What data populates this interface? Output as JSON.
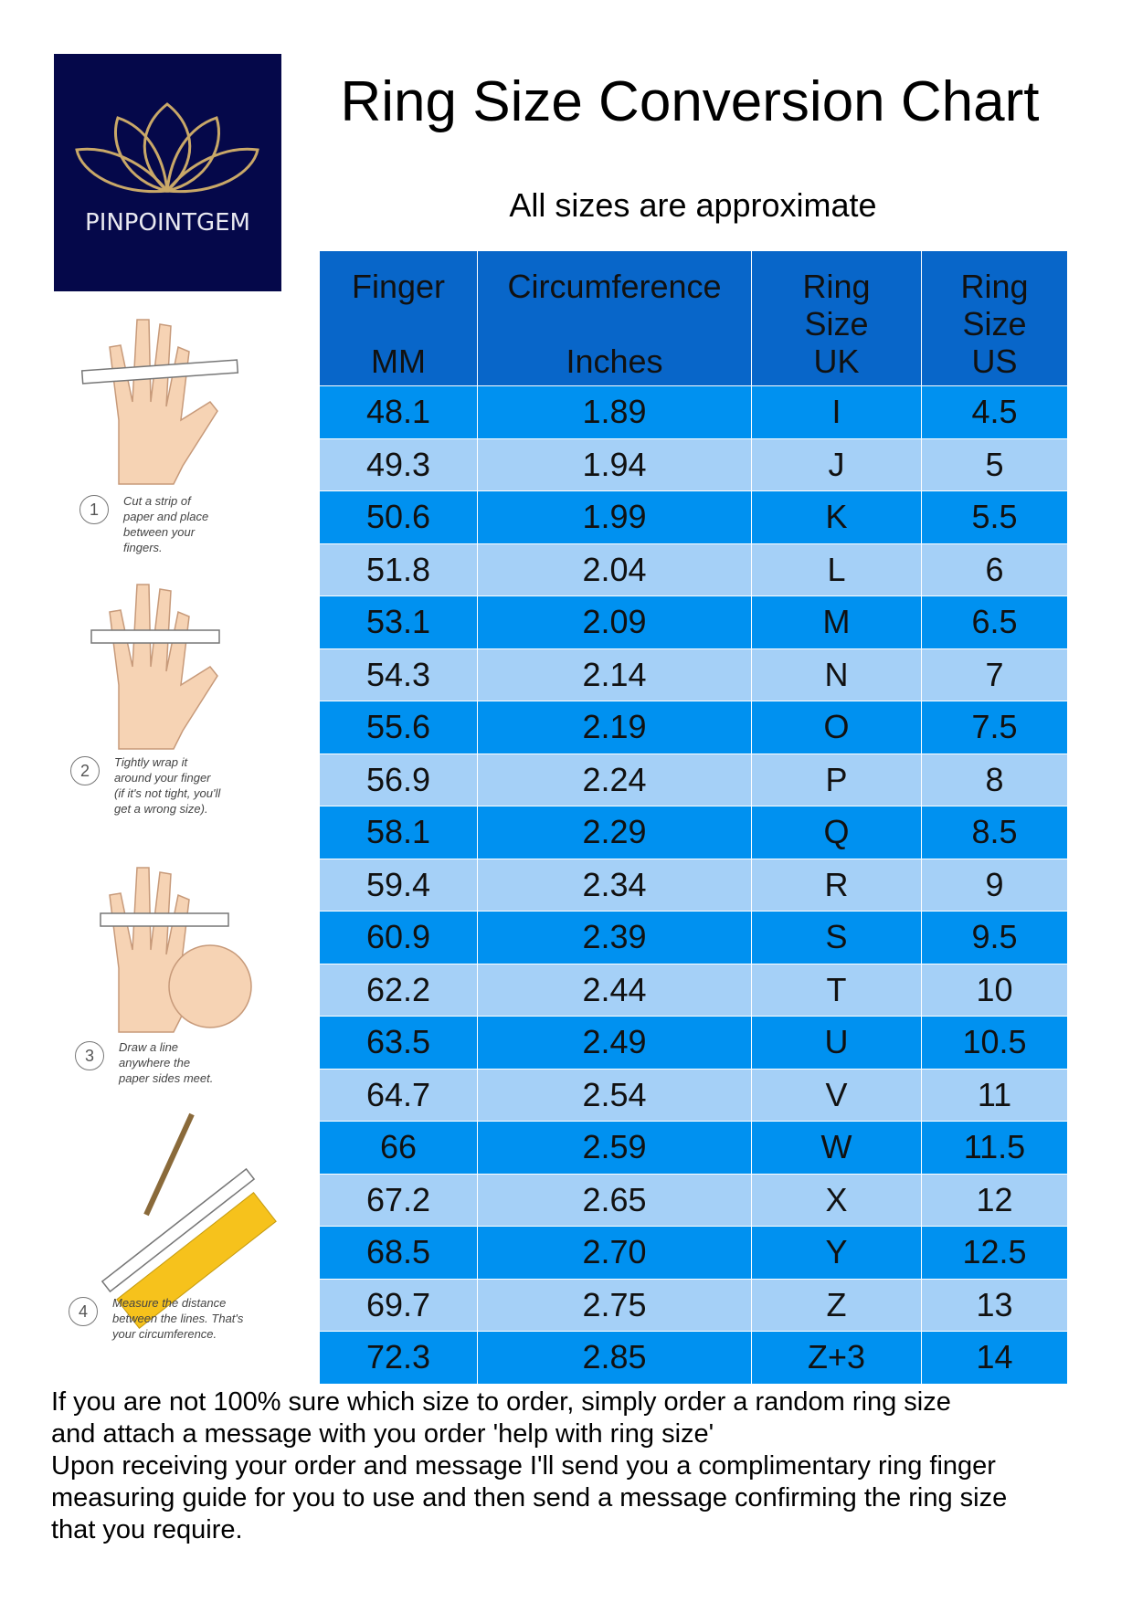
{
  "logo": {
    "text": "PINPOINTGEM"
  },
  "header": {
    "title": "Ring Size Conversion Chart",
    "subtitle": "All sizes are approximate"
  },
  "table": {
    "columns": [
      [
        "Finger",
        "",
        "MM"
      ],
      [
        "Circumference",
        "",
        "Inches"
      ],
      [
        "Ring",
        "Size",
        "UK"
      ],
      [
        "Ring",
        "Size",
        "US"
      ]
    ],
    "rows": [
      [
        "48.1",
        "1.89",
        "I",
        "4.5"
      ],
      [
        "49.3",
        "1.94",
        "J",
        "5"
      ],
      [
        "50.6",
        "1.99",
        "K",
        "5.5"
      ],
      [
        "51.8",
        "2.04",
        "L",
        "6"
      ],
      [
        "53.1",
        "2.09",
        "M",
        "6.5"
      ],
      [
        "54.3",
        "2.14",
        "N",
        "7"
      ],
      [
        "55.6",
        "2.19",
        "O",
        "7.5"
      ],
      [
        "56.9",
        "2.24",
        "P",
        "8"
      ],
      [
        "58.1",
        "2.29",
        "Q",
        "8.5"
      ],
      [
        "59.4",
        "2.34",
        "R",
        "9"
      ],
      [
        "60.9",
        "2.39",
        "S",
        "9.5"
      ],
      [
        "62.2",
        "2.44",
        "T",
        "10"
      ],
      [
        "63.5",
        "2.49",
        "U",
        "10.5"
      ],
      [
        "64.7",
        "2.54",
        "V",
        "11"
      ],
      [
        "66",
        "2.59",
        "W",
        "11.5"
      ],
      [
        "67.2",
        "2.65",
        "X",
        "12"
      ],
      [
        "68.5",
        "2.70",
        "Y",
        "12.5"
      ],
      [
        "69.7",
        "2.75",
        "Z",
        "13"
      ],
      [
        "72.3",
        "2.85",
        "Z+3",
        "14"
      ]
    ]
  },
  "instructions": [
    {
      "number": "1",
      "lines": [
        "Cut a strip of",
        "paper and place",
        "between your",
        "fingers."
      ]
    },
    {
      "number": "2",
      "lines": [
        "Tightly wrap it",
        "around your finger",
        "(if it's not tight, you'll",
        "get a wrong size)."
      ]
    },
    {
      "number": "3",
      "lines": [
        "Draw a line",
        "anywhere the",
        "paper sides meet."
      ]
    },
    {
      "number": "4",
      "lines": [
        "Measure the distance",
        "between the lines. That's",
        "your circumference."
      ]
    }
  ],
  "footer": {
    "lines": [
      "If you are not 100% sure which size to order, simply order a random ring size",
      "and attach a message with you order 'help with ring size'",
      "Upon receiving your order and message I'll send you a complimentary ring finger",
      "measuring guide for you to use and then send a message confirming the ring size",
      "that you require."
    ]
  }
}
